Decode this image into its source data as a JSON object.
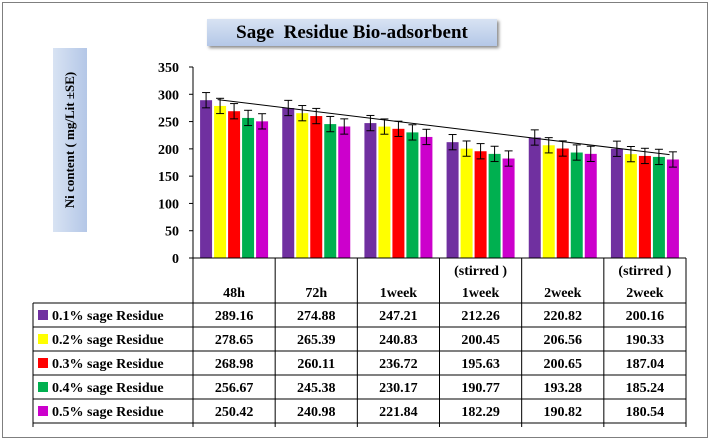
{
  "chart_data": {
    "type": "bar",
    "title": "Sage  Residue Bio-adsorbent",
    "ylabel": "Ni content ( mg/Lit ±SE)",
    "xlabel": "",
    "ylim": [
      0,
      350
    ],
    "yticks": [
      0,
      50,
      100,
      150,
      200,
      250,
      300,
      350
    ],
    "category_top_labels": [
      "",
      "",
      "",
      "(stirred )",
      "",
      "(stirred )"
    ],
    "categories": [
      "48h",
      "72h",
      "1week",
      "1week",
      "2week",
      "2week"
    ],
    "series": [
      {
        "name": "0.1% sage Residue",
        "color": "#7030a0",
        "values": [
          289.16,
          274.88,
          247.21,
          212.26,
          220.82,
          200.16
        ],
        "labels": [
          "289.16",
          "274.88",
          "247.21",
          "212.26",
          "220.82",
          "200.16"
        ]
      },
      {
        "name": "0.2% sage Residue",
        "color": "#ffff00",
        "values": [
          278.65,
          265.39,
          240.83,
          200.45,
          206.56,
          190.33
        ],
        "labels": [
          "278.65",
          "265.39",
          "240.83",
          "200.45",
          "206.56",
          "190.33"
        ]
      },
      {
        "name": "0.3% sage Residue",
        "color": "#ff0000",
        "values": [
          268.98,
          260.11,
          236.72,
          195.63,
          200.65,
          187.04
        ],
        "labels": [
          "268.98",
          "260.11",
          "236.72",
          "195.63",
          "200.65",
          "187.04"
        ]
      },
      {
        "name": "0.4% sage Residue",
        "color": "#00b050",
        "values": [
          256.67,
          245.38,
          230.17,
          190.77,
          193.28,
          185.24
        ],
        "labels": [
          "256.67",
          "245.38",
          "230.17",
          "190.77",
          "193.28",
          "185.24"
        ]
      },
      {
        "name": "0.5% sage Residue",
        "color": "#cc00cc",
        "values": [
          250.42,
          240.98,
          221.84,
          182.29,
          190.82,
          180.54
        ],
        "labels": [
          "250.42",
          "240.98",
          "221.84",
          "182.29",
          "190.82",
          "180.54"
        ]
      }
    ],
    "error_bar_approx": 14,
    "trendline": {
      "series": "0.1% sage Residue",
      "type": "linear"
    },
    "grid": false,
    "legend": "data-table"
  }
}
